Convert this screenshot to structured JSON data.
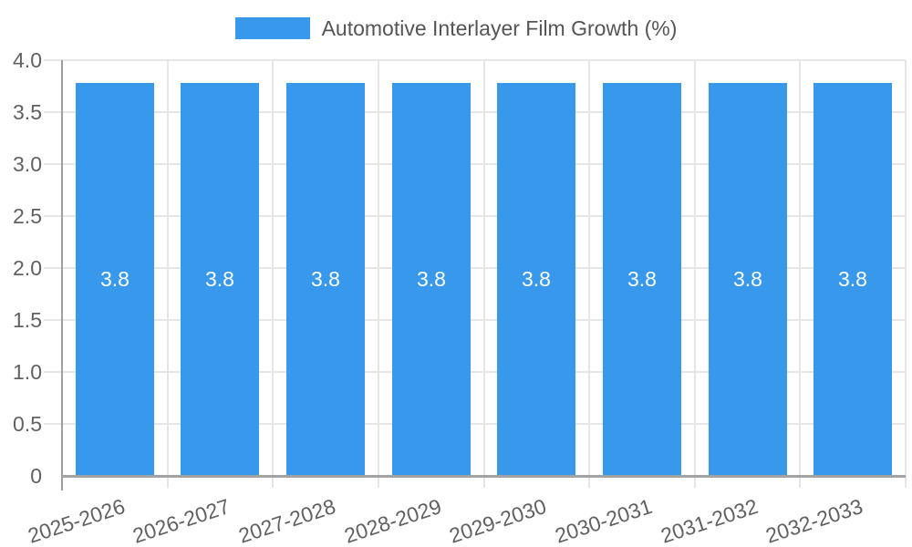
{
  "chart_data": {
    "type": "bar",
    "title": "Automotive Interlayer Film Growth (%)",
    "legend": {
      "position": "top-center",
      "entries": [
        {
          "label": "Automotive Interlayer Film Growth (%)",
          "color": "#3899EC"
        }
      ]
    },
    "categories": [
      "2025-2026",
      "2026-2027",
      "2027-2028",
      "2028-2029",
      "2029-2030",
      "2030-2031",
      "2031-2032",
      "2032-2033"
    ],
    "values": [
      3.8,
      3.8,
      3.8,
      3.8,
      3.8,
      3.8,
      3.8,
      3.8
    ],
    "value_labels": [
      "3.8",
      "3.8",
      "3.8",
      "3.8",
      "3.8",
      "3.8",
      "3.8",
      "3.8"
    ],
    "xlabel": "",
    "ylabel": "",
    "ylim": [
      0,
      4.0
    ],
    "yticks": [
      {
        "value": 0,
        "label": "0"
      },
      {
        "value": 0.5,
        "label": "0.5"
      },
      {
        "value": 1.0,
        "label": "1.0"
      },
      {
        "value": 1.5,
        "label": "1.5"
      },
      {
        "value": 2.0,
        "label": "2.0"
      },
      {
        "value": 2.5,
        "label": "2.5"
      },
      {
        "value": 3.0,
        "label": "3.0"
      },
      {
        "value": 3.5,
        "label": "3.5"
      },
      {
        "value": 4.0,
        "label": "4.0"
      }
    ],
    "grid": true,
    "colors": {
      "bar": "#3899EC",
      "bar_value_text": "#ffffff",
      "legend_text": "#555555",
      "axis_text": "#616161",
      "gridline": "#e6e6e6",
      "axis_line": "#9e9e9e"
    }
  }
}
